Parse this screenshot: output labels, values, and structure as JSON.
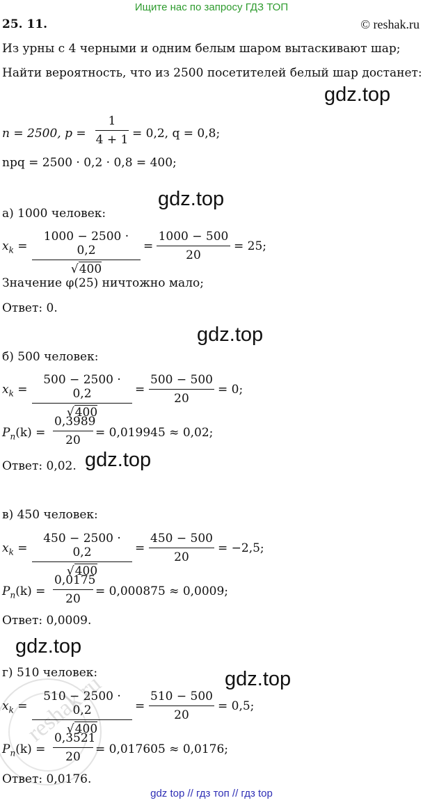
{
  "header": {
    "banner": "Ищите нас по запросу ГДЗ ТОП",
    "problem_number": "25. 11.",
    "copyright": "© reshak.ru"
  },
  "statement": {
    "line1": "Из урны с 4 черными и одним белым шаром вытаскивают шар;",
    "line2": "Найти вероятность, что из 2500 посетителей белый шар достанет:"
  },
  "watermark": "gdz.top",
  "stamp_text": "reshak.ru",
  "given": {
    "n_expr": "n = 2500,  p =",
    "p_num": "1",
    "p_den": "4 + 1",
    "p_rest": "= 0,2,  q = 0,8;",
    "npq": "npq = 2500 · 0,2 · 0,8 = 400;"
  },
  "part_a": {
    "heading": "а) 1000 человек:",
    "xk": "x",
    "xk_sub": "k",
    "eq": "=",
    "f1_num": "1000 − 2500 · 0,2",
    "f1_den": "400",
    "f2_num": "1000 − 500",
    "f2_den": "20",
    "result": "= 25;",
    "note": "Значение φ(25) ничтожно мало;",
    "answer": "Ответ:  0."
  },
  "part_b": {
    "heading": "б) 500 человек:",
    "f1_num": "500 − 2500 · 0,2",
    "f1_den": "400",
    "f2_num": "500 − 500",
    "f2_den": "20",
    "result": "= 0;",
    "p_lhs": "P",
    "p_sub": "n",
    "p_arg": "(k) =",
    "p_num": "0,3989",
    "p_den": "20",
    "p_res": "= 0,019945 ≈ 0,02;",
    "answer": "Ответ:  0,02."
  },
  "part_v": {
    "heading": "в) 450 человек:",
    "f1_num": "450 − 2500 · 0,2",
    "f1_den": "400",
    "f2_num": "450 − 500",
    "f2_den": "20",
    "result": "= −2,5;",
    "p_num": "0,0175",
    "p_den": "20",
    "p_res": "= 0,000875 ≈ 0,0009;",
    "answer": "Ответ:  0,0009."
  },
  "part_g": {
    "heading": "г) 510 человек:",
    "f1_num": "510 − 2500 · 0,2",
    "f1_den": "400",
    "f2_num": "510 − 500",
    "f2_den": "20",
    "result": "= 0,5;",
    "p_num": "0,3521",
    "p_den": "20",
    "p_res": "= 0,017605 ≈ 0,0176;",
    "answer": "Ответ:  0,0176."
  },
  "footer": "gdz top  //  гдз топ  //  гдз top"
}
